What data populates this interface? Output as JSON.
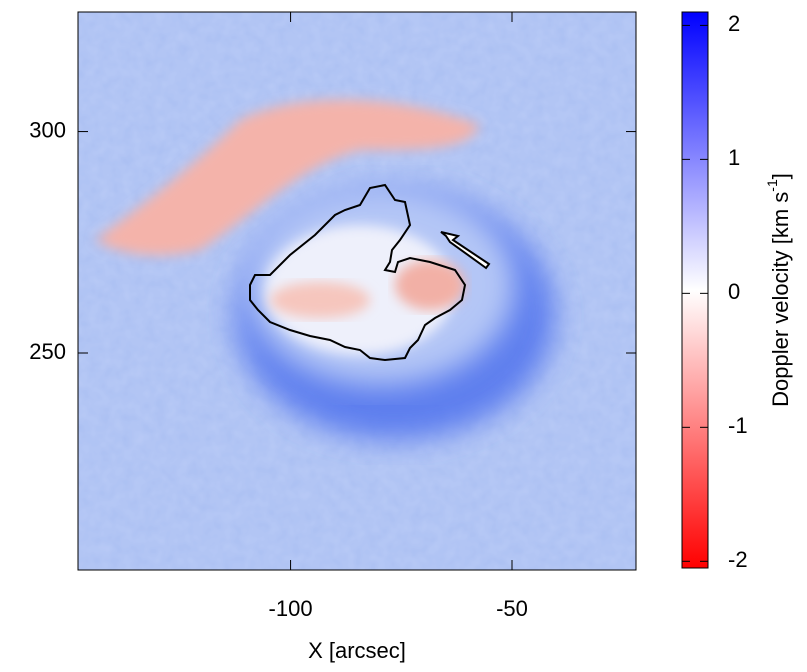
{
  "chart_data": {
    "type": "heatmap",
    "xlabel": "X [arcsec]",
    "xlim": [
      -148,
      -22
    ],
    "xticks": [
      -100,
      -50
    ],
    "ylim": [
      201,
      327
    ],
    "yticks": [
      250,
      300
    ],
    "colorbar_label": {
      "text": "Doppler velocity [km s",
      "superscript": "-1",
      "suffix": "]"
    },
    "clim": [
      -2.05,
      2.1
    ],
    "cticks": [
      -2,
      -1,
      0,
      1,
      2
    ],
    "colormap": [
      "#ff0000",
      "#ffffff",
      "#0000ff"
    ]
  }
}
